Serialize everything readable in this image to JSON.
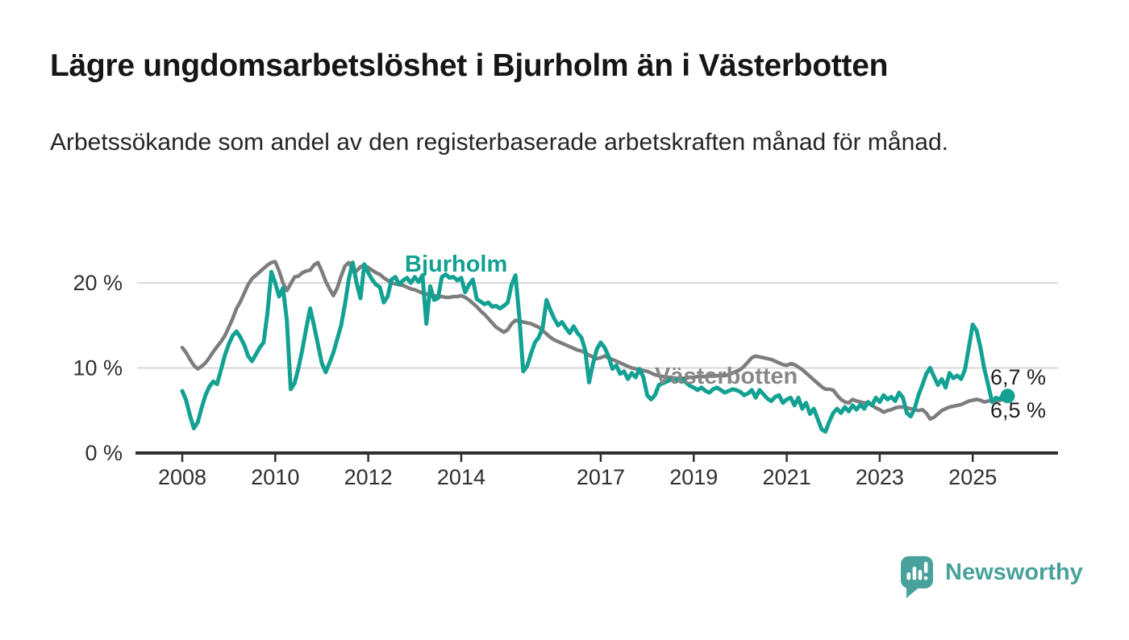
{
  "page": {
    "background": "#ffffff"
  },
  "header": {
    "title": "Lägre ungdomsarbetslöshet i Bjurholm än i Västerbotten",
    "subtitle": "Arbetssökande som andel av den registerbaserade arbetskraften månad för månad."
  },
  "footer": {
    "brand": "Newsworthy",
    "brand_color": "#48a29b"
  },
  "chart_data": {
    "type": "line",
    "title": "Lägre ungdomsarbetslöshet i Bjurholm än i Västerbotten",
    "x_unit": "month",
    "x_start_year": 2008,
    "x_range": [
      "2008-01",
      "2025-10"
    ],
    "y_unit": "%",
    "ylim": [
      0,
      24
    ],
    "grid": true,
    "legend_position": "inline-labels",
    "x_ticks": [
      {
        "year": 2008,
        "label": "2008"
      },
      {
        "year": 2010,
        "label": "2010"
      },
      {
        "year": 2012,
        "label": "2012"
      },
      {
        "year": 2014,
        "label": "2014"
      },
      {
        "year": 2017,
        "label": "2017"
      },
      {
        "year": 2019,
        "label": "2019"
      },
      {
        "year": 2021,
        "label": "2021"
      },
      {
        "year": 2023,
        "label": "2023"
      },
      {
        "year": 2025,
        "label": "2025"
      }
    ],
    "y_ticks": [
      {
        "value": 0,
        "label": "0 %"
      },
      {
        "value": 10,
        "label": "10 %"
      },
      {
        "value": 20,
        "label": "20 %"
      }
    ],
    "series": [
      {
        "name": "Västerbotten",
        "color": "#7d7d7d",
        "label_color": "#878787",
        "end_label": "6,5 %",
        "end_dot": false,
        "values": [
          12.4,
          11.8,
          11.0,
          10.3,
          9.9,
          10.2,
          10.6,
          11.2,
          11.9,
          12.5,
          13.1,
          13.8,
          14.8,
          15.8,
          17.0,
          17.8,
          18.8,
          19.8,
          20.5,
          20.9,
          21.3,
          21.7,
          22.1,
          22.4,
          22.5,
          21.4,
          20.0,
          19.1,
          19.9,
          20.7,
          20.8,
          21.2,
          21.4,
          21.5,
          22.1,
          22.4,
          21.4,
          20.2,
          19.3,
          18.5,
          19.4,
          20.8,
          22.0,
          22.4,
          21.6,
          21.4,
          21.9,
          22.1,
          21.8,
          21.5,
          21.2,
          21.0,
          20.6,
          20.3,
          20.0,
          19.9,
          19.8,
          19.7,
          19.5,
          19.3,
          19.2,
          19.0,
          18.8,
          18.7,
          18.6,
          18.5,
          18.4,
          18.4,
          18.3,
          18.3,
          18.4,
          18.4,
          18.5,
          18.3,
          18.0,
          17.6,
          17.2,
          16.7,
          16.3,
          15.8,
          15.3,
          14.8,
          14.5,
          14.2,
          14.5,
          15.2,
          15.6,
          15.5,
          15.4,
          15.3,
          15.2,
          15.0,
          14.8,
          14.4,
          14.0,
          13.6,
          13.3,
          13.1,
          12.9,
          12.7,
          12.5,
          12.3,
          12.1,
          12.0,
          11.8,
          11.5,
          11.3,
          11.1,
          11.2,
          11.4,
          11.2,
          11.0,
          10.8,
          10.6,
          10.4,
          10.2,
          10.0,
          9.9,
          9.8,
          9.7,
          9.6,
          9.4,
          9.2,
          9.1,
          9.0,
          8.9,
          8.9,
          8.8,
          8.8,
          8.8,
          8.8,
          8.9,
          8.9,
          9.0,
          9.0,
          9.0,
          9.1,
          9.1,
          9.1,
          9.1,
          9.1,
          9.2,
          9.4,
          9.6,
          9.8,
          10.2,
          10.7,
          11.2,
          11.4,
          11.3,
          11.2,
          11.1,
          11.0,
          10.8,
          10.6,
          10.4,
          10.3,
          10.5,
          10.4,
          10.1,
          9.8,
          9.4,
          9.0,
          8.6,
          8.2,
          7.8,
          7.5,
          7.5,
          7.4,
          6.8,
          6.3,
          6.0,
          5.9,
          6.3,
          6.1,
          6.0,
          5.9,
          5.9,
          5.6,
          5.3,
          5.1,
          4.8,
          5.0,
          5.1,
          5.3,
          5.4,
          5.4,
          5.3,
          5.2,
          5.1,
          5.0,
          5.1,
          4.7,
          4.0,
          4.2,
          4.6,
          5.0,
          5.2,
          5.4,
          5.5,
          5.6,
          5.7,
          5.9,
          6.1,
          6.2,
          6.3,
          6.2,
          6.0,
          6.1,
          6.2,
          6.1,
          6.2,
          6.3,
          6.5
        ]
      },
      {
        "name": "Bjurholm",
        "color": "#12a192",
        "label_color": "#12a192",
        "end_label": "6,7 %",
        "end_dot": true,
        "values": [
          7.3,
          6.2,
          4.4,
          2.9,
          3.6,
          5.3,
          6.8,
          7.8,
          8.4,
          8.1,
          9.8,
          11.5,
          12.8,
          13.8,
          14.3,
          13.6,
          12.7,
          11.4,
          10.8,
          11.6,
          12.4,
          13.0,
          16.5,
          21.3,
          20.0,
          18.4,
          19.4,
          15.6,
          7.5,
          8.2,
          10.0,
          12.2,
          14.7,
          17.0,
          15.0,
          12.8,
          10.6,
          9.5,
          10.6,
          11.8,
          13.4,
          15.0,
          17.5,
          20.5,
          22.4,
          20.0,
          18.2,
          22.2,
          21.2,
          20.4,
          19.8,
          19.5,
          17.7,
          18.4,
          20.4,
          20.7,
          19.8,
          20.3,
          20.6,
          20.0,
          20.7,
          20.1,
          20.9,
          15.2,
          19.6,
          18.0,
          18.2,
          20.7,
          21.0,
          20.6,
          20.7,
          20.3,
          20.6,
          18.9,
          19.8,
          20.4,
          18.1,
          17.8,
          17.5,
          17.7,
          17.2,
          17.3,
          17.0,
          17.3,
          17.7,
          19.8,
          20.9,
          16.0,
          9.6,
          10.2,
          11.7,
          13.0,
          13.6,
          14.7,
          18.0,
          16.8,
          15.8,
          15.0,
          15.4,
          14.7,
          14.1,
          14.9,
          14.1,
          13.6,
          12.1,
          8.3,
          10.5,
          12.2,
          13.0,
          12.4,
          11.4,
          9.9,
          10.3,
          9.3,
          9.6,
          8.7,
          9.4,
          8.9,
          9.9,
          8.9,
          6.8,
          6.3,
          6.8,
          8.0,
          8.2,
          8.4,
          8.6,
          8.8,
          8.5,
          8.7,
          8.3,
          7.9,
          7.7,
          7.4,
          7.7,
          7.3,
          7.1,
          7.5,
          7.7,
          7.4,
          7.1,
          7.3,
          7.5,
          7.4,
          7.2,
          6.8,
          7.0,
          7.4,
          6.5,
          7.4,
          6.9,
          6.4,
          6.1,
          6.6,
          6.8,
          5.9,
          6.3,
          6.5,
          5.6,
          6.5,
          5.2,
          5.9,
          4.6,
          5.2,
          4.0,
          2.8,
          2.5,
          3.7,
          4.7,
          5.2,
          4.7,
          5.4,
          4.9,
          5.6,
          5.1,
          5.7,
          5.2,
          6.0,
          5.6,
          6.5,
          6.0,
          6.8,
          6.3,
          6.6,
          6.1,
          7.1,
          6.5,
          4.7,
          4.3,
          5.2,
          6.8,
          8.0,
          9.3,
          10.0,
          9.0,
          8.0,
          8.7,
          7.7,
          9.4,
          8.8,
          9.1,
          8.7,
          9.8,
          12.4,
          15.1,
          14.4,
          12.4,
          9.9,
          8.0,
          6.0,
          6.5,
          6.3,
          7.0,
          6.7
        ]
      }
    ]
  }
}
